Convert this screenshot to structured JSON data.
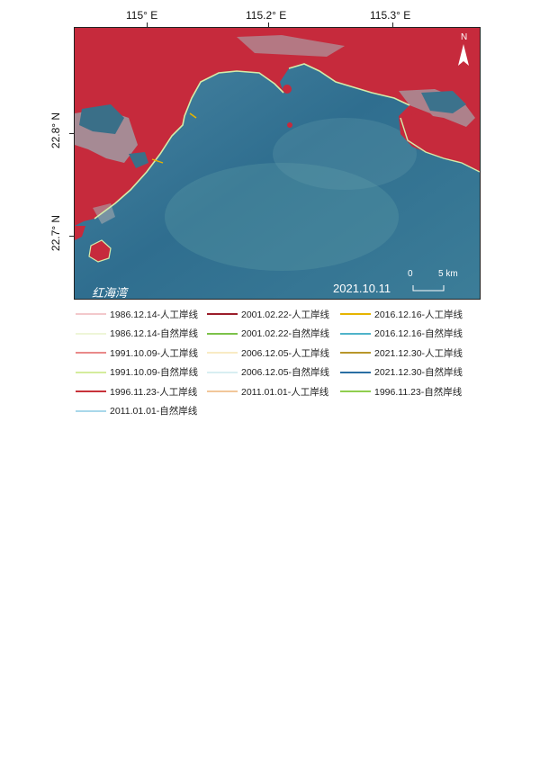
{
  "map": {
    "lon_ticks": [
      "115° E",
      "115.2° E",
      "115.3° E"
    ],
    "lat_ticks": [
      "22.8° N",
      "22.7° N"
    ],
    "place_name": "红海湾",
    "date": "2021.10.11",
    "scale_zero": "0",
    "scale_end": "5 km",
    "north": "N",
    "colors": {
      "land": "#c8283a",
      "sea_deep": "#2f6d8c",
      "sea_light": "#4d8aa0",
      "urban": "#9aa0a8",
      "coast": "#cde9a8"
    }
  },
  "legend": [
    {
      "label": "1986.12.14-人工岸线",
      "color": "#f3c9cc"
    },
    {
      "label": "2001.02.22-人工岸线",
      "color": "#9b1d2a"
    },
    {
      "label": "2016.12.16-人工岸线",
      "color": "#e6b400"
    },
    {
      "label": "1986.12.14-自然岸线",
      "color": "#eef6d8"
    },
    {
      "label": "2001.02.22-自然岸线",
      "color": "#7cc24a"
    },
    {
      "label": "2016.12.16-自然岸线",
      "color": "#4fb3c9"
    },
    {
      "label": "1991.10.09-人工岸线",
      "color": "#e98a8a"
    },
    {
      "label": "2006.12.05-人工岸线",
      "color": "#f9ebc4"
    },
    {
      "label": "2021.12.30-人工岸线",
      "color": "#b8962a"
    },
    {
      "label": "1991.10.09-自然岸线",
      "color": "#d4ec9c"
    },
    {
      "label": "2006.12.05-自然岸线",
      "color": "#d8eef2"
    },
    {
      "label": "2021.12.30-自然岸线",
      "color": "#2a6fa3"
    },
    {
      "label": "1996.11.23-人工岸线",
      "color": "#c8323a"
    },
    {
      "label": "2011.01.01-人工岸线",
      "color": "#f2c79a"
    },
    {
      "label": "1996.11.23-自然岸线",
      "color": "#8fce4e"
    },
    {
      "label": "2011.01.01-自然岸线",
      "color": "#a9d8ea"
    }
  ]
}
